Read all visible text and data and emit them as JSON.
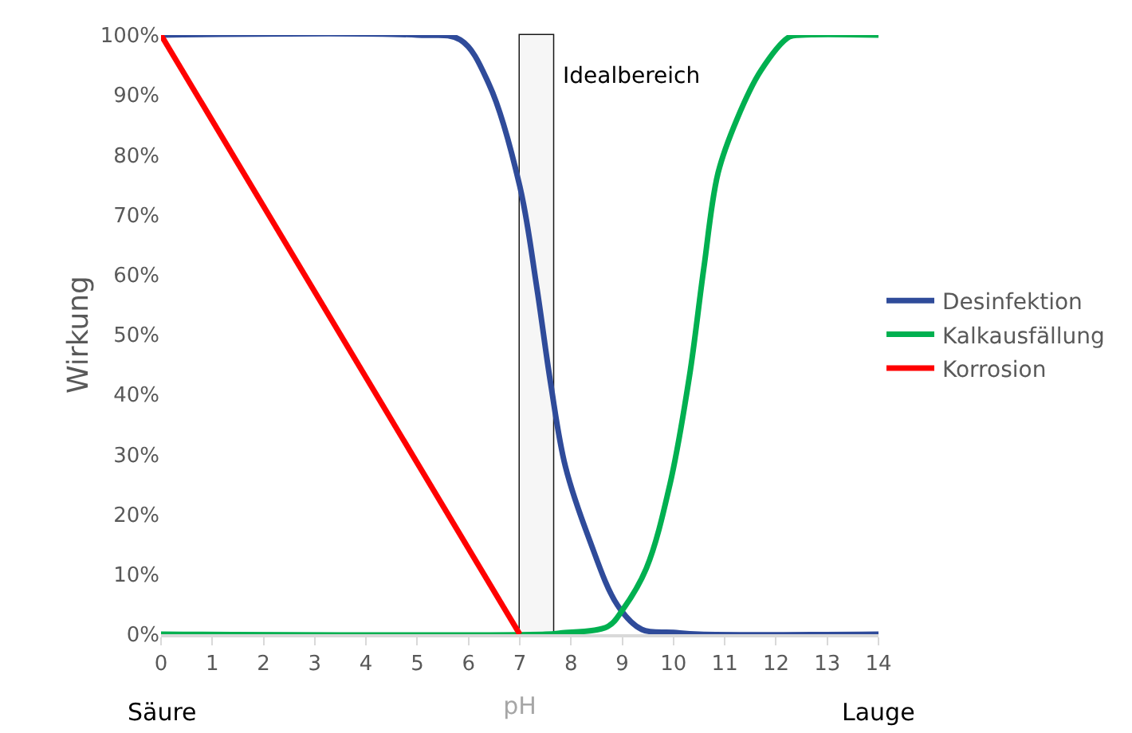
{
  "chart_data": {
    "type": "line",
    "xlabel": "pH",
    "ylabel": "Wirkung",
    "annotations": [
      "Säure",
      "Lauge"
    ],
    "xlim": [
      0,
      14
    ],
    "xticks": [
      0,
      1,
      2,
      3,
      4,
      5,
      6,
      7,
      8,
      9,
      10,
      11,
      12,
      13,
      14
    ],
    "ylim": [
      0,
      100
    ],
    "yticks": [
      {
        "value": 0,
        "label": "0%"
      },
      {
        "value": 10,
        "label": "10%"
      },
      {
        "value": 20,
        "label": "20%"
      },
      {
        "value": 30,
        "label": "30%"
      },
      {
        "value": 40,
        "label": "40%"
      },
      {
        "value": 50,
        "label": "50%"
      },
      {
        "value": 60,
        "label": "60%"
      },
      {
        "value": 70,
        "label": "70%"
      },
      {
        "value": 80,
        "label": "80%"
      },
      {
        "value": 90,
        "label": "90%"
      },
      {
        "value": 100,
        "label": "100%"
      }
    ],
    "grid": false,
    "legend": "right",
    "marker": "none",
    "line_style": "solid",
    "bands": [
      {
        "axis": "x",
        "from": 7,
        "to": 7.65,
        "label": "Idealbereich",
        "color": "#000000"
      }
    ],
    "series": [
      {
        "name": "Desinfektion",
        "color": "#2f4b9a",
        "x": [
          0,
          5,
          5.84,
          6.4,
          7,
          7.33,
          7.6,
          7.89,
          8.35,
          8.91,
          9.38,
          10,
          10.5,
          14
        ],
        "values": [
          100,
          100,
          99.2,
          91.8,
          74.8,
          58,
          42,
          28,
          16,
          4.8,
          0.8,
          0.3,
          0,
          0
        ]
      },
      {
        "name": "Kalkausfällung",
        "color": "#00b050",
        "x": [
          0,
          7.5,
          7.8,
          8.72,
          9,
          9.47,
          9.93,
          10.31,
          10.59,
          10.87,
          11.24,
          11.7,
          12.26,
          12.5,
          14
        ],
        "values": [
          0,
          0,
          0.2,
          1.3,
          4,
          11,
          25,
          43,
          61,
          77,
          86,
          94,
          99.7,
          100,
          100
        ]
      },
      {
        "name": "Korrosion",
        "color": "#ff0000",
        "x": [
          0,
          7
        ],
        "values": [
          100,
          0
        ]
      }
    ]
  }
}
